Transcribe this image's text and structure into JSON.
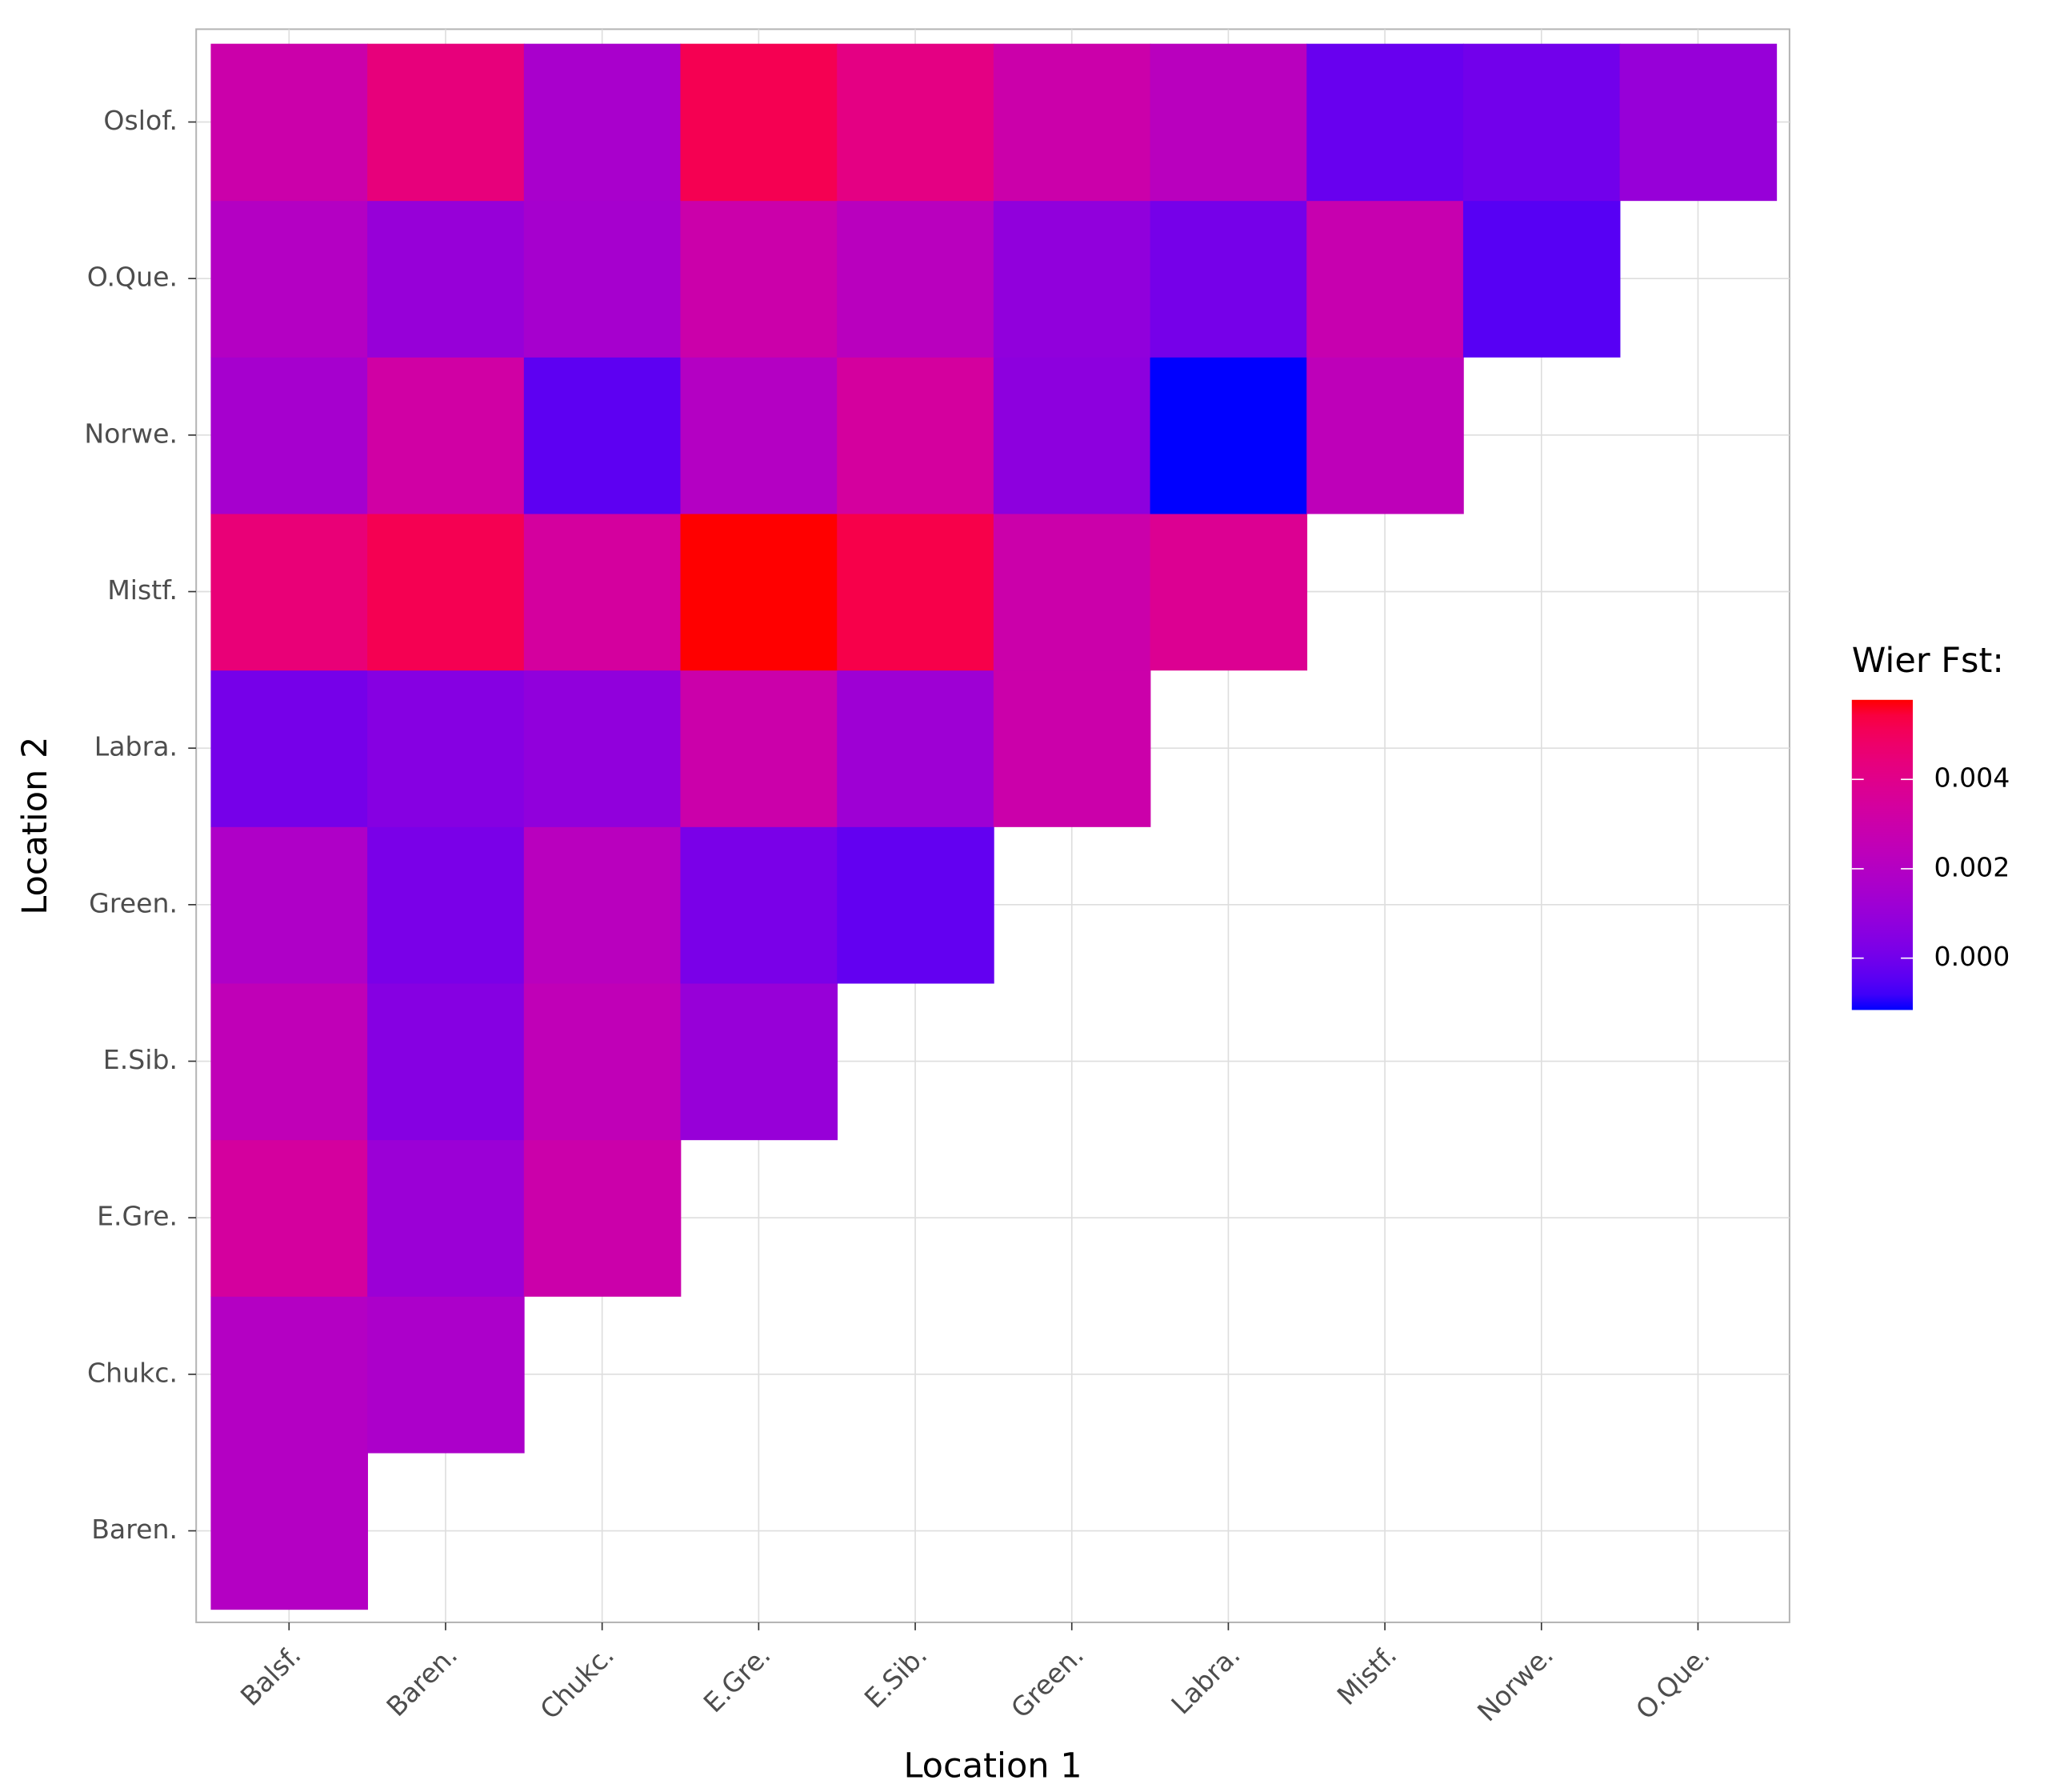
{
  "chart_data": {
    "type": "heatmap",
    "x_label": "Location 1",
    "y_label": "Location 2",
    "legend_title": "Wier Fst:",
    "x_categories": [
      "Balsf.",
      "Baren.",
      "Chukc.",
      "E.Gre.",
      "E.Sib.",
      "Green.",
      "Labra.",
      "Mistf.",
      "Norwe.",
      "O.Que."
    ],
    "y_categories": [
      "Baren.",
      "Chukc.",
      "E.Gre.",
      "E.Sib.",
      "Green.",
      "Labra.",
      "Mistf.",
      "Norwe.",
      "O.Que.",
      "Oslof."
    ],
    "values": [
      [
        0.002,
        null,
        null,
        null,
        null,
        null,
        null,
        null,
        null,
        null
      ],
      [
        0.002,
        0.0017,
        null,
        null,
        null,
        null,
        null,
        null,
        null,
        null
      ],
      [
        0.0034,
        0.0011,
        0.003,
        null,
        null,
        null,
        null,
        null,
        null,
        null
      ],
      [
        0.0025,
        0.0005,
        0.0025,
        0.001,
        null,
        null,
        null,
        null,
        null,
        null
      ],
      [
        0.0018,
        0.0002,
        0.0022,
        0.0002,
        -0.0003,
        null,
        null,
        null,
        null,
        null
      ],
      [
        0.0001,
        0.0005,
        0.0008,
        0.003,
        0.0012,
        0.003,
        null,
        null,
        null,
        null
      ],
      [
        0.0045,
        0.0052,
        0.0034,
        0.0058,
        0.0053,
        0.003,
        0.0038,
        null,
        null,
        null
      ],
      [
        0.0015,
        0.0032,
        -0.0004,
        0.002,
        0.0034,
        0.0007,
        -0.00116,
        0.0024,
        null,
        null
      ],
      [
        0.002,
        0.001,
        0.0015,
        0.003,
        0.0022,
        0.0008,
        0.0001,
        0.0028,
        -0.0005,
        null
      ],
      [
        0.003,
        0.0044,
        0.0016,
        0.0052,
        0.0042,
        0.003,
        0.0022,
        -0.0002,
        0.0,
        0.001
      ]
    ],
    "color_low": "#0000ff",
    "color_high": "#ff0000",
    "colorbar_lim": [
      -0.00116,
      0.00578
    ],
    "colorbar_ticks": [
      {
        "value": 0,
        "label": "0.000"
      },
      {
        "value": 0.002,
        "label": "0.002"
      },
      {
        "value": 0.004,
        "label": "0.004"
      }
    ],
    "grid": true
  }
}
